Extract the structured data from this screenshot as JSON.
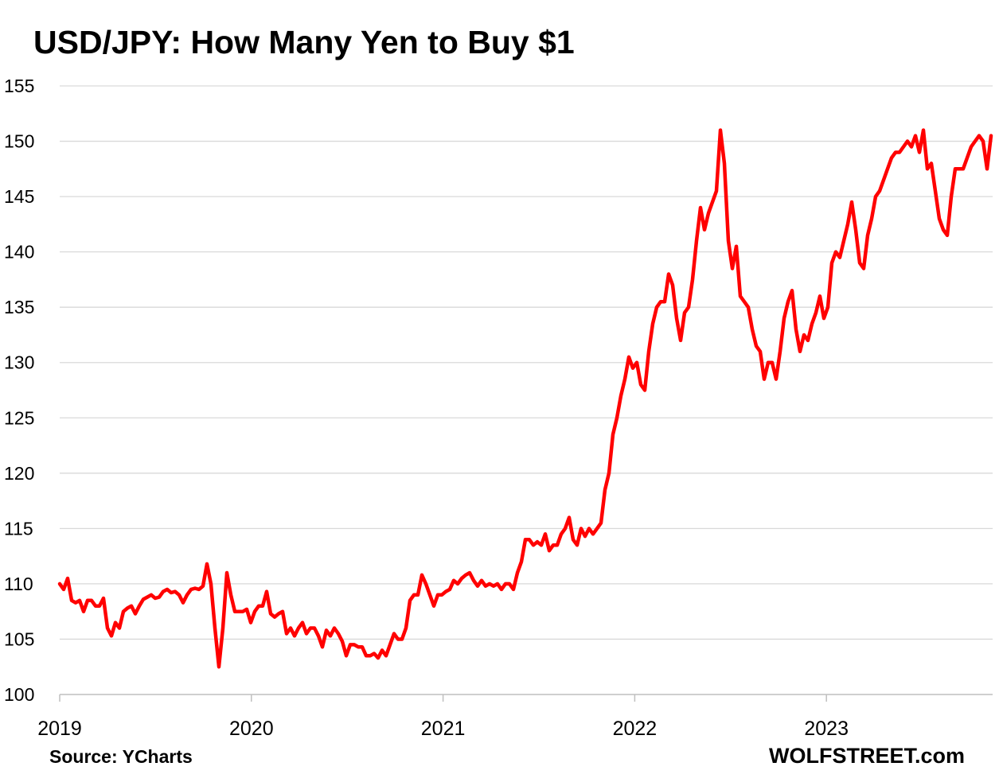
{
  "chart_data": {
    "type": "line",
    "title": "USD/JPY: How Many Yen to Buy $1",
    "xlabel": "",
    "ylabel": "",
    "source": "Source: YCharts",
    "brand": "WOLFSTREET.com",
    "ylim": [
      100,
      155
    ],
    "yticks": [
      "100",
      "105",
      "110",
      "115",
      "120",
      "125",
      "130",
      "135",
      "140",
      "145",
      "150",
      "155"
    ],
    "xlim": [
      2019.0,
      2023.87
    ],
    "xticks": [
      "2019",
      "2020",
      "2021",
      "2022",
      "2023"
    ],
    "grid": true,
    "series": [
      {
        "name": "USD/JPY",
        "color": "#ff0000",
        "x_start": 2019.0,
        "x_step": 0.020764,
        "values": [
          110,
          109.5,
          110.5,
          108.5,
          108.3,
          108.5,
          107.5,
          108.5,
          108.5,
          108,
          108,
          108.7,
          106,
          105.3,
          106.5,
          106,
          107.5,
          107.8,
          108,
          107.3,
          108,
          108.6,
          108.8,
          109,
          108.7,
          108.8,
          109.3,
          109.5,
          109.2,
          109.3,
          109,
          108.3,
          109,
          109.5,
          109.6,
          109.5,
          109.8,
          111.8,
          110,
          106,
          102.5,
          106,
          111,
          109,
          107.5,
          107.5,
          107.5,
          107.7,
          106.5,
          107.5,
          108,
          108,
          109.3,
          107.3,
          107,
          107.3,
          107.5,
          105.5,
          106,
          105.3,
          106,
          106.5,
          105.5,
          106,
          106,
          105.3,
          104.3,
          105.8,
          105.3,
          106,
          105.5,
          104.8,
          103.5,
          104.5,
          104.5,
          104.3,
          104.3,
          103.5,
          103.5,
          103.7,
          103.3,
          104,
          103.5,
          104.5,
          105.5,
          105,
          105,
          106,
          108.5,
          109,
          109,
          110.8,
          110,
          109,
          108,
          109,
          109,
          109.3,
          109.5,
          110.3,
          110,
          110.5,
          110.8,
          111,
          110.3,
          109.8,
          110.3,
          109.8,
          110,
          109.8,
          110,
          109.5,
          110,
          110,
          109.5,
          111,
          112,
          114,
          114,
          113.5,
          113.8,
          113.5,
          114.5,
          113,
          113.5,
          113.5,
          114.5,
          115,
          116,
          114,
          113.5,
          115,
          114.3,
          115,
          114.5,
          115,
          115.5,
          118.5,
          120,
          123.5,
          125,
          127,
          128.5,
          130.5,
          129.5,
          130,
          128,
          127.5,
          131,
          133.5,
          135,
          135.5,
          135.5,
          138,
          137,
          134,
          132,
          134.5,
          135,
          137.5,
          141,
          144,
          142,
          143.5,
          144.5,
          145.5,
          151,
          148,
          141,
          138.5,
          140.5,
          136,
          135.5,
          135,
          133,
          131.5,
          131,
          128.5,
          130,
          130,
          128.5,
          131,
          134,
          135.5,
          136.5,
          133,
          131,
          132.5,
          132,
          133.5,
          134.5,
          136,
          134,
          135,
          139,
          140,
          139.5,
          141,
          142.5,
          144.5,
          142,
          139,
          138.5,
          141.5,
          143,
          145,
          145.5,
          146.5,
          147.5,
          148.5,
          149,
          149,
          149.5,
          150,
          149.5,
          150.5,
          149,
          151,
          147.5,
          148,
          145.5,
          143,
          142,
          141.5,
          145,
          147.5,
          147.5,
          147.5,
          148.5,
          149.5,
          150,
          150.5,
          150,
          147.5,
          150.5
        ]
      }
    ]
  }
}
